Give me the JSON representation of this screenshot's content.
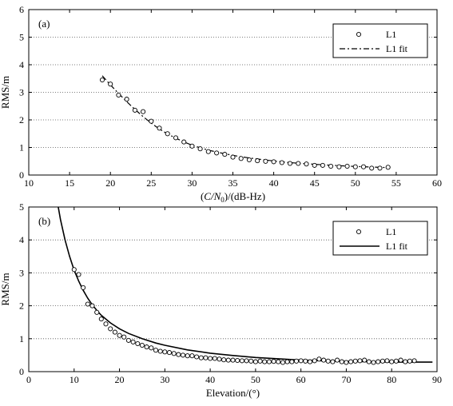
{
  "chart_data": [
    {
      "type": "scatter",
      "panel_label": "(a)",
      "xlabel": "(C/N₀)/(dB-Hz)",
      "ylabel": "RMS/m",
      "xlim": [
        10,
        60
      ],
      "ylim": [
        0,
        6
      ],
      "xticks": [
        10,
        15,
        20,
        25,
        30,
        35,
        40,
        45,
        50,
        55,
        60
      ],
      "yticks": [
        0,
        1,
        2,
        3,
        4,
        5,
        6
      ],
      "grid": "y-dotted",
      "legend_position": "top-right",
      "legend": [
        "L1",
        "L1 fit"
      ],
      "series": [
        {
          "name": "L1",
          "style": "open-circle",
          "x": [
            19,
            20,
            21,
            22,
            23,
            24,
            25,
            26,
            27,
            28,
            29,
            30,
            31,
            32,
            33,
            34,
            35,
            36,
            37,
            38,
            39,
            40,
            41,
            42,
            43,
            44,
            45,
            46,
            47,
            48,
            49,
            50,
            51,
            52,
            53,
            54
          ],
          "y": [
            3.45,
            3.3,
            2.9,
            2.75,
            2.35,
            2.3,
            1.95,
            1.7,
            1.5,
            1.35,
            1.2,
            1.05,
            0.95,
            0.85,
            0.8,
            0.75,
            0.65,
            0.6,
            0.55,
            0.52,
            0.5,
            0.48,
            0.45,
            0.42,
            0.42,
            0.4,
            0.35,
            0.35,
            0.32,
            0.3,
            0.32,
            0.3,
            0.3,
            0.25,
            0.25,
            0.28
          ]
        },
        {
          "name": "L1 fit",
          "style": "dash-dot",
          "x": [
            19,
            20,
            21,
            22,
            23,
            24,
            25,
            26,
            27,
            28,
            29,
            30,
            32,
            34,
            36,
            38,
            40,
            42,
            44,
            46,
            48,
            50,
            52,
            54
          ],
          "y": [
            3.6,
            3.27,
            2.96,
            2.66,
            2.38,
            2.12,
            1.88,
            1.67,
            1.49,
            1.34,
            1.2,
            1.08,
            0.9,
            0.77,
            0.66,
            0.58,
            0.51,
            0.45,
            0.41,
            0.37,
            0.34,
            0.31,
            0.29,
            0.27
          ]
        }
      ]
    },
    {
      "type": "scatter",
      "panel_label": "(b)",
      "xlabel": "Elevation/(°)",
      "ylabel": "RMS/m",
      "xlim": [
        0,
        90
      ],
      "ylim": [
        0,
        5
      ],
      "xticks": [
        0,
        10,
        20,
        30,
        40,
        50,
        60,
        70,
        80,
        90
      ],
      "yticks": [
        0,
        1,
        2,
        3,
        4,
        5
      ],
      "grid": "y-dotted",
      "legend_position": "top-right",
      "legend": [
        "L1",
        "L1 fit"
      ],
      "series": [
        {
          "name": "L1",
          "style": "open-circle",
          "x": [
            10,
            11,
            12,
            13,
            14,
            15,
            16,
            17,
            18,
            19,
            20,
            21,
            22,
            23,
            24,
            25,
            26,
            27,
            28,
            29,
            30,
            31,
            32,
            33,
            34,
            35,
            36,
            37,
            38,
            39,
            40,
            41,
            42,
            43,
            44,
            45,
            46,
            47,
            48,
            49,
            50,
            51,
            52,
            53,
            54,
            55,
            56,
            57,
            58,
            59,
            60,
            61,
            62,
            63,
            64,
            65,
            66,
            67,
            68,
            69,
            70,
            71,
            72,
            73,
            74,
            75,
            76,
            77,
            78,
            79,
            80,
            81,
            82,
            83,
            84,
            85
          ],
          "y": [
            3.1,
            2.95,
            2.55,
            2.05,
            2.0,
            1.8,
            1.6,
            1.45,
            1.3,
            1.2,
            1.1,
            1.05,
            0.95,
            0.9,
            0.85,
            0.8,
            0.75,
            0.72,
            0.65,
            0.62,
            0.6,
            0.58,
            0.55,
            0.52,
            0.5,
            0.48,
            0.48,
            0.45,
            0.42,
            0.42,
            0.4,
            0.4,
            0.38,
            0.36,
            0.35,
            0.35,
            0.34,
            0.33,
            0.33,
            0.32,
            0.3,
            0.32,
            0.3,
            0.3,
            0.31,
            0.3,
            0.28,
            0.3,
            0.3,
            0.32,
            0.33,
            0.32,
            0.3,
            0.33,
            0.38,
            0.35,
            0.32,
            0.3,
            0.35,
            0.3,
            0.28,
            0.3,
            0.32,
            0.33,
            0.35,
            0.3,
            0.28,
            0.3,
            0.32,
            0.33,
            0.3,
            0.32,
            0.35,
            0.3,
            0.32,
            0.33
          ]
        },
        {
          "name": "L1 fit",
          "style": "solid",
          "x": [
            6.5,
            7,
            8,
            9,
            10,
            11,
            12,
            13,
            14,
            15,
            16,
            18,
            20,
            22,
            25,
            28,
            30,
            35,
            40,
            45,
            50,
            55,
            60,
            65,
            70,
            75,
            80,
            85,
            89
          ],
          "y": [
            5.0,
            4.62,
            4.0,
            3.5,
            3.08,
            2.75,
            2.47,
            2.23,
            2.03,
            1.86,
            1.71,
            1.48,
            1.3,
            1.16,
            1.0,
            0.87,
            0.8,
            0.66,
            0.56,
            0.49,
            0.43,
            0.39,
            0.35,
            0.33,
            0.31,
            0.3,
            0.29,
            0.29,
            0.29
          ]
        }
      ]
    }
  ]
}
